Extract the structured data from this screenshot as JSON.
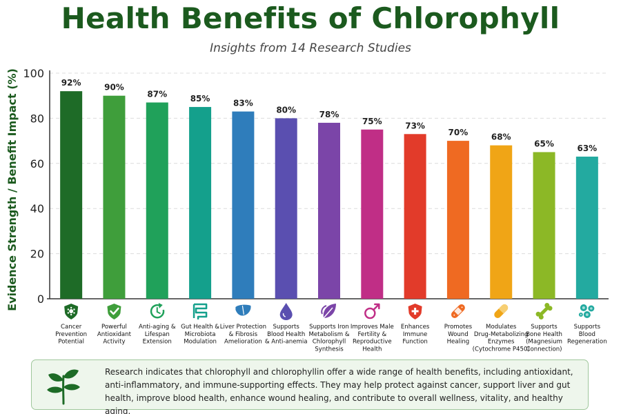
{
  "header": {
    "title": "Health Benefits of Chlorophyll",
    "subtitle": "Insights from 14 Research Studies"
  },
  "chart_data": {
    "type": "bar",
    "ylabel": "Evidence Strength / Benefit Impact (%)",
    "ylim": [
      0,
      100
    ],
    "yticks": [
      0,
      20,
      40,
      60,
      80,
      100
    ],
    "grid": true,
    "categories": [
      [
        "Cancer",
        "Prevention",
        "Potential"
      ],
      [
        "Powerful",
        "Antioxidant",
        "Activity"
      ],
      [
        "Anti-aging &",
        "Lifespan",
        "Extension"
      ],
      [
        "Gut Health &",
        "Microbiota",
        "Modulation"
      ],
      [
        "Liver Protection",
        "& Fibrosis",
        "Amelioration"
      ],
      [
        "Supports",
        "Blood Health",
        "& Anti-anemia"
      ],
      [
        "Supports Iron",
        "Metabolism &",
        "Chlorophyll",
        "Synthesis"
      ],
      [
        "Improves Male",
        "Fertility &",
        "Reproductive",
        "Health"
      ],
      [
        "Enhances",
        "Immune",
        "Function"
      ],
      [
        "Promotes",
        "Wound",
        "Healing"
      ],
      [
        "Modulates",
        "Drug-Metabolizing",
        "Enzymes",
        "(Cytochrome P450)"
      ],
      [
        "Supports",
        "Bone Health",
        "(Magnesium",
        "Connection)"
      ],
      [
        "Supports",
        "Blood",
        "Regeneration"
      ]
    ],
    "values": [
      92,
      90,
      87,
      85,
      83,
      80,
      78,
      75,
      73,
      70,
      68,
      65,
      63
    ],
    "value_labels": [
      "92%",
      "90%",
      "87%",
      "85%",
      "83%",
      "80%",
      "78%",
      "75%",
      "73%",
      "70%",
      "68%",
      "65%",
      "63%"
    ],
    "colors": [
      "#1e6b27",
      "#3f9e3b",
      "#20a15a",
      "#14a08c",
      "#2f7dbb",
      "#5a4fb0",
      "#7b45a8",
      "#c02e86",
      "#e23b2a",
      "#ef6a22",
      "#f0a516",
      "#8cb826",
      "#23aaa0"
    ],
    "icons": [
      "shield-virus-icon",
      "shield-check-icon",
      "clock-refresh-icon",
      "intestine-icon",
      "liver-icon",
      "blood-drop-icon",
      "leaf-icon",
      "male-symbol-icon",
      "shield-plus-icon",
      "bandage-icon",
      "pill-icon",
      "bone-icon",
      "blood-cells-icon"
    ]
  },
  "note": {
    "text": "Research indicates that chlorophyll and chlorophyllin offer a wide range of health benefits, including antioxidant, anti-inflammatory, and immune-supporting effects. They may help protect against cancer, support liver and gut health, improve blood health, enhance wound healing, and contribute to overall wellness, vitality, and healthy aging.",
    "icon": "plant-sprout-icon"
  }
}
